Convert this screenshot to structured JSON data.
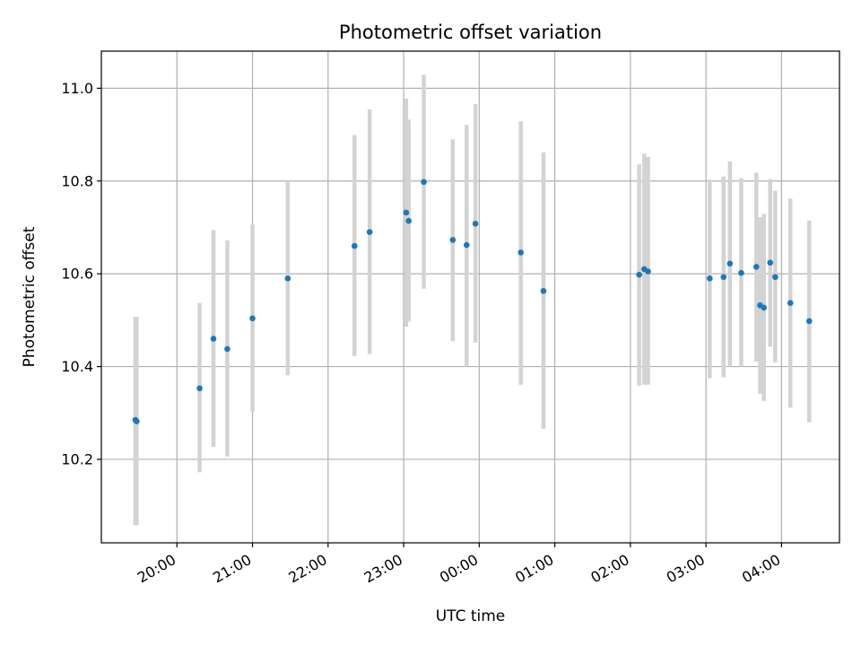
{
  "chart_data": {
    "type": "scatter",
    "title": "Photometric offset variation",
    "xlabel": "UTC time",
    "ylabel": "Photometric offset",
    "x_ticks": [
      "20:00",
      "21:00",
      "22:00",
      "23:00",
      "00:00",
      "01:00",
      "02:00",
      "03:00",
      "04:00"
    ],
    "y_ticks": [
      "10.2",
      "10.4",
      "10.6",
      "10.8",
      "11.0"
    ],
    "xlim": [
      "19:00",
      "28:46"
    ],
    "ylim": [
      10.02,
      11.08
    ],
    "grid": true,
    "colors": {
      "marker": "#1f77b4",
      "errorbar": "#d3d3d3",
      "grid": "#b0b0b0"
    },
    "points": [
      {
        "x": "19:27",
        "y": 10.285,
        "err_low": 10.058,
        "err_high": 10.507
      },
      {
        "x": "19:28",
        "y": 10.282,
        "err_low": 10.058,
        "err_high": 10.507
      },
      {
        "x": "20:18",
        "y": 10.353,
        "err_low": 10.172,
        "err_high": 10.537
      },
      {
        "x": "20:29",
        "y": 10.46,
        "err_low": 10.227,
        "err_high": 10.694
      },
      {
        "x": "20:40",
        "y": 10.438,
        "err_low": 10.206,
        "err_high": 10.672
      },
      {
        "x": "21:00",
        "y": 10.504,
        "err_low": 10.303,
        "err_high": 10.706
      },
      {
        "x": "21:28",
        "y": 10.59,
        "err_low": 10.381,
        "err_high": 10.8
      },
      {
        "x": "22:21",
        "y": 10.66,
        "err_low": 10.423,
        "err_high": 10.899
      },
      {
        "x": "22:33",
        "y": 10.69,
        "err_low": 10.427,
        "err_high": 10.954
      },
      {
        "x": "23:02",
        "y": 10.732,
        "err_low": 10.486,
        "err_high": 10.978
      },
      {
        "x": "23:04",
        "y": 10.714,
        "err_low": 10.497,
        "err_high": 10.932
      },
      {
        "x": "23:16",
        "y": 10.798,
        "err_low": 10.568,
        "err_high": 11.029
      },
      {
        "x": "23:39",
        "y": 10.673,
        "err_low": 10.455,
        "err_high": 10.89
      },
      {
        "x": "23:50",
        "y": 10.662,
        "err_low": 10.4,
        "err_high": 10.921
      },
      {
        "x": "23:57",
        "y": 10.708,
        "err_low": 10.451,
        "err_high": 10.966
      },
      {
        "x": "24:33",
        "y": 10.646,
        "err_low": 10.361,
        "err_high": 10.929
      },
      {
        "x": "24:51",
        "y": 10.563,
        "err_low": 10.266,
        "err_high": 10.862
      },
      {
        "x": "26:07",
        "y": 10.598,
        "err_low": 10.359,
        "err_high": 10.836
      },
      {
        "x": "26:11",
        "y": 10.61,
        "err_low": 10.361,
        "err_high": 10.859
      },
      {
        "x": "26:14",
        "y": 10.605,
        "err_low": 10.361,
        "err_high": 10.852
      },
      {
        "x": "27:03",
        "y": 10.59,
        "err_low": 10.375,
        "err_high": 10.803
      },
      {
        "x": "27:14",
        "y": 10.593,
        "err_low": 10.377,
        "err_high": 10.81
      },
      {
        "x": "27:19",
        "y": 10.622,
        "err_low": 10.4,
        "err_high": 10.842
      },
      {
        "x": "27:28",
        "y": 10.602,
        "err_low": 10.4,
        "err_high": 10.806
      },
      {
        "x": "27:40",
        "y": 10.615,
        "err_low": 10.411,
        "err_high": 10.818
      },
      {
        "x": "27:43",
        "y": 10.532,
        "err_low": 10.341,
        "err_high": 10.722
      },
      {
        "x": "27:46",
        "y": 10.527,
        "err_low": 10.326,
        "err_high": 10.729
      },
      {
        "x": "27:51",
        "y": 10.624,
        "err_low": 10.443,
        "err_high": 10.804
      },
      {
        "x": "27:55",
        "y": 10.593,
        "err_low": 10.409,
        "err_high": 10.779
      },
      {
        "x": "28:07",
        "y": 10.537,
        "err_low": 10.311,
        "err_high": 10.762
      },
      {
        "x": "28:22",
        "y": 10.498,
        "err_low": 10.28,
        "err_high": 10.715
      }
    ]
  }
}
